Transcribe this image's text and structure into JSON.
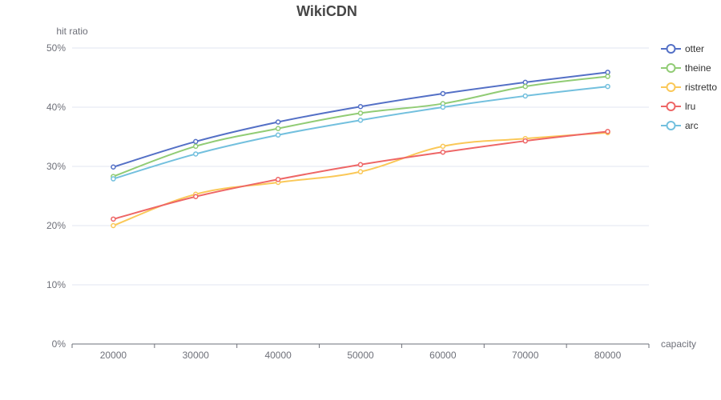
{
  "chart_data": {
    "type": "line",
    "title": "WikiCDN",
    "xlabel": "capacity",
    "ylabel": "hit ratio",
    "categories": [
      "20000",
      "30000",
      "40000",
      "50000",
      "60000",
      "70000",
      "80000"
    ],
    "ylim": [
      0,
      50
    ],
    "yticks": [
      "0%",
      "10%",
      "20%",
      "30%",
      "40%",
      "50%"
    ],
    "grid": true,
    "legend_position": "right",
    "series": [
      {
        "name": "otter",
        "color": "#5470c6",
        "values": [
          29.9,
          34.2,
          37.5,
          40.1,
          42.3,
          44.2,
          45.9
        ]
      },
      {
        "name": "theine",
        "color": "#91cc75",
        "values": [
          28.3,
          33.4,
          36.4,
          39.0,
          40.6,
          43.5,
          45.2
        ]
      },
      {
        "name": "ristretto",
        "color": "#fac858",
        "values": [
          20.0,
          25.3,
          27.3,
          29.1,
          33.4,
          34.7,
          35.7
        ]
      },
      {
        "name": "lru",
        "color": "#ee6666",
        "values": [
          21.1,
          24.9,
          27.8,
          30.3,
          32.4,
          34.3,
          35.9
        ]
      },
      {
        "name": "arc",
        "color": "#73c0de",
        "values": [
          27.9,
          32.1,
          35.3,
          37.8,
          40.0,
          41.9,
          43.5
        ]
      }
    ]
  }
}
